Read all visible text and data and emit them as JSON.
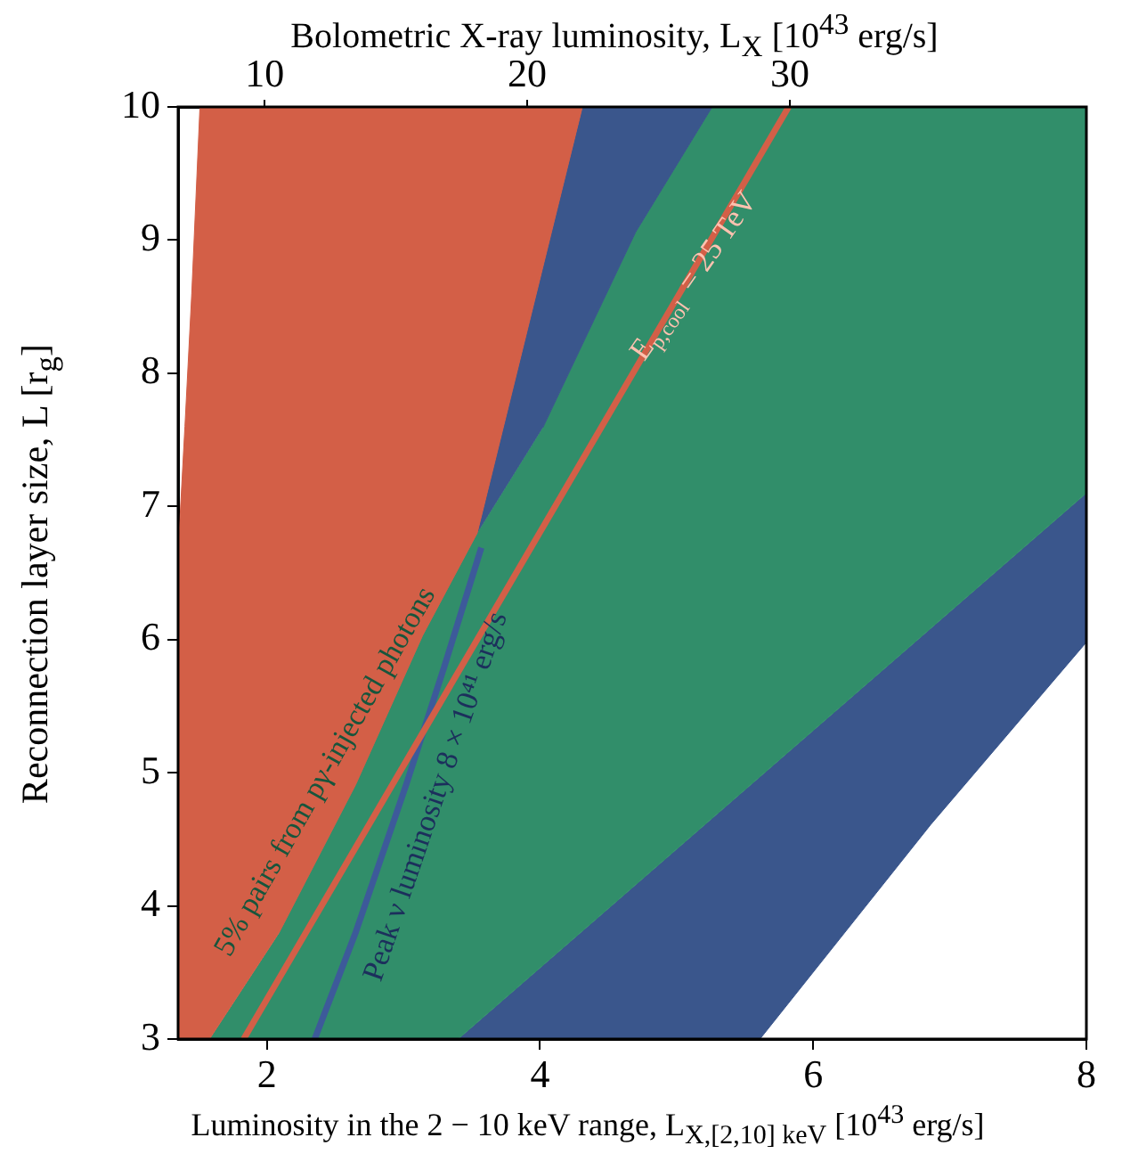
{
  "chart_data": {
    "type": "area",
    "xlabel": "Luminosity in the 2 − 10 keV range, L$_{X,[2,10] keV}$ [10$^{43}$ erg/s]",
    "ylabel": "Reconnection layer size, L [r$_{g}$]",
    "x2label": "Bolometric X-ray luminosity, L$_{X}$ [10$^{43}$ erg/s]",
    "xlim": [
      1.35,
      8
    ],
    "xticks": [
      2,
      4,
      6,
      8
    ],
    "ylim": [
      3,
      10
    ],
    "yticks": [
      3,
      4,
      5,
      6,
      7,
      8,
      9,
      10
    ],
    "x2lim": [
      6.7,
      41.3
    ],
    "x2ticks": [
      10,
      20,
      30
    ],
    "grid": false,
    "legend": false,
    "series": [
      {
        "color": "#d35f47",
        "x": [
          1.35,
          1.58,
          2.09,
          2.65,
          3.14,
          3.54,
          4.31,
          1.51,
          1.45,
          1.4,
          1.35
        ],
        "values": [
          3,
          3,
          3.8,
          4.91,
          6.03,
          6.8,
          10,
          10,
          8.6,
          7.6,
          6.65
        ]
      },
      {
        "color": "#3a568c",
        "x": [
          3.54,
          4.31,
          5.26,
          4.7,
          4.02
        ],
        "values": [
          6.8,
          10,
          10,
          9.06,
          7.59
        ]
      },
      {
        "color": "#318e6a",
        "x": [
          1.58,
          3.4,
          8,
          8,
          5.26,
          4.7,
          4.02,
          3.54,
          3.14,
          2.65,
          2.09
        ],
        "values": [
          3,
          3,
          7.1,
          10,
          10,
          9.06,
          7.59,
          6.8,
          6.03,
          4.91,
          3.8
        ]
      },
      {
        "color": "#3a568c",
        "x": [
          3.4,
          5.61,
          6.86,
          8,
          8
        ],
        "values": [
          3,
          3,
          4.61,
          5.98,
          7.1
        ]
      },
      {
        "type": "line",
        "color": "#d35f47",
        "x": [
          1.83,
          5.82
        ],
        "values": [
          3,
          10
        ]
      },
      {
        "type": "line",
        "color": "#3d5a9a",
        "x": [
          2.35,
          2.65,
          3.02,
          3.3,
          3.57
        ],
        "values": [
          3,
          3.8,
          4.91,
          5.8,
          6.69
        ]
      }
    ],
    "annotations": [
      "5% pairs from pγ-injected photons",
      "Peak ν luminosity 8 × 10⁴¹ erg/s",
      "E$_{p,cool}$ = 25 TeV"
    ]
  }
}
